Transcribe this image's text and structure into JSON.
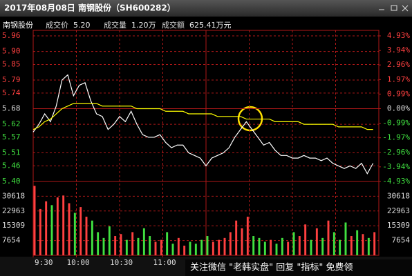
{
  "window": {
    "title": "2017年08月08日 南钢股份（SH600282）"
  },
  "info": {
    "name": "南钢股份",
    "fields": [
      {
        "label": "成交价",
        "value": "5.20"
      },
      {
        "label": "成交量",
        "value": "1.20万"
      },
      {
        "label": "成交额",
        "value": "625.41万元"
      }
    ]
  },
  "watermark": "关注微信 \"老韩实盘\" 回复 \"指标\" 免费领",
  "chart_data": [
    {
      "type": "line",
      "x": [
        0,
        4,
        8,
        12,
        16,
        20,
        24,
        28,
        32,
        36,
        40,
        44,
        48,
        52,
        56,
        60,
        64,
        68,
        72,
        76,
        80,
        84,
        88,
        92,
        96,
        100,
        104,
        108,
        112,
        116,
        120,
        124,
        128,
        132,
        136,
        140,
        144,
        148,
        152,
        156,
        160,
        164,
        168,
        172,
        176,
        180,
        184,
        188,
        192,
        196,
        200,
        204,
        208,
        212,
        216,
        220,
        224,
        228,
        232,
        236
      ],
      "xlim": [
        0,
        240
      ],
      "series": [
        {
          "color": "#ffffff",
          "values": [
            5.59,
            5.62,
            5.66,
            5.63,
            5.69,
            5.79,
            5.81,
            5.73,
            5.77,
            5.78,
            5.71,
            5.66,
            5.65,
            5.6,
            5.62,
            5.65,
            5.63,
            5.67,
            5.62,
            5.58,
            5.57,
            5.57,
            5.58,
            5.55,
            5.53,
            5.54,
            5.54,
            5.51,
            5.5,
            5.49,
            5.46,
            5.49,
            5.5,
            5.51,
            5.53,
            5.57,
            5.6,
            5.63,
            5.6,
            5.57,
            5.54,
            5.55,
            5.52,
            5.5,
            5.5,
            5.49,
            5.49,
            5.5,
            5.49,
            5.49,
            5.48,
            5.49,
            5.47,
            5.46,
            5.45,
            5.46,
            5.45,
            5.47,
            5.43,
            5.47
          ]
        },
        {
          "color": "#ffff00",
          "values": [
            5.6,
            5.61,
            5.63,
            5.64,
            5.66,
            5.68,
            5.69,
            5.7,
            5.7,
            5.7,
            5.7,
            5.7,
            5.69,
            5.69,
            5.69,
            5.69,
            5.69,
            5.69,
            5.68,
            5.68,
            5.68,
            5.68,
            5.68,
            5.67,
            5.67,
            5.67,
            5.67,
            5.66,
            5.66,
            5.66,
            5.66,
            5.66,
            5.65,
            5.65,
            5.65,
            5.65,
            5.65,
            5.64,
            5.64,
            5.64,
            5.64,
            5.64,
            5.63,
            5.63,
            5.63,
            5.63,
            5.63,
            5.62,
            5.62,
            5.62,
            5.62,
            5.62,
            5.62,
            5.61,
            5.61,
            5.61,
            5.61,
            5.61,
            5.6,
            5.6
          ]
        }
      ],
      "ylim": [
        5.4,
        5.96
      ],
      "yticks": [
        5.96,
        {
          "value": 5.9,
          "label": "5.90"
        },
        5.85,
        5.79,
        5.74,
        5.68,
        5.62,
        5.57,
        5.51,
        5.46,
        {
          "value": 5.4,
          "label": "5.40"
        }
      ],
      "y2lim": [
        -4.93,
        4.93
      ],
      "y2ticks": [
        {
          "value": 4.93,
          "label": "4.93%"
        },
        {
          "value": 3.94,
          "label": "3.94%"
        },
        {
          "value": 2.96,
          "label": "2.96%"
        },
        {
          "value": 1.97,
          "label": "1.97%"
        },
        {
          "value": 0.99,
          "label": "0.99%"
        },
        {
          "value": 0,
          "label": "0.00%"
        },
        {
          "value": -0.99,
          "label": "-0.99%"
        },
        {
          "value": -1.97,
          "label": "-1.97%"
        },
        {
          "value": -2.96,
          "label": "-2.96%"
        },
        {
          "value": -3.94,
          "label": "-3.94%"
        },
        {
          "value": -4.93,
          "label": "-4.93%"
        }
      ],
      "up_color": "#ff4040",
      "down_color": "#40e040",
      "grid_color": "#b01818"
    },
    {
      "type": "bar",
      "x": [
        0,
        4,
        8,
        12,
        16,
        20,
        24,
        28,
        32,
        36,
        40,
        44,
        48,
        52,
        56,
        60,
        64,
        68,
        72,
        76,
        80,
        84,
        88,
        92,
        96,
        100,
        104,
        108,
        112,
        116,
        120,
        124,
        128,
        132,
        136,
        140,
        144,
        148,
        152,
        156,
        160,
        164,
        168,
        172,
        176,
        180,
        184,
        188,
        192,
        196,
        200,
        204,
        208,
        212,
        216,
        220,
        224,
        228,
        232,
        236
      ],
      "xlim": [
        0,
        240
      ],
      "xticks": [
        {
          "value": 0,
          "label": "9:30"
        },
        {
          "value": 30,
          "label": "10:00"
        },
        {
          "value": 60,
          "label": "10:30"
        },
        {
          "value": 90,
          "label": "11:00"
        }
      ],
      "values": [
        36000,
        24000,
        28000,
        26000,
        30000,
        31000,
        27000,
        22000,
        25000,
        20000,
        18000,
        12000,
        9000,
        15000,
        10000,
        11000,
        8000,
        12000,
        9000,
        14000,
        10000,
        7000,
        8000,
        12000,
        6000,
        9000,
        5000,
        7000,
        6000,
        8000,
        10000,
        7000,
        8000,
        9000,
        12000,
        18000,
        14000,
        20000,
        10000,
        9000,
        7000,
        8000,
        6000,
        9000,
        7000,
        12000,
        10000,
        16000,
        8000,
        14000,
        9000,
        18000,
        12000,
        8000,
        17000,
        10000,
        13000,
        11000,
        9000,
        12000
      ],
      "ylim": [
        0,
        38272.5
      ],
      "yticks": [
        30618,
        22963,
        15309,
        7654
      ]
    }
  ]
}
